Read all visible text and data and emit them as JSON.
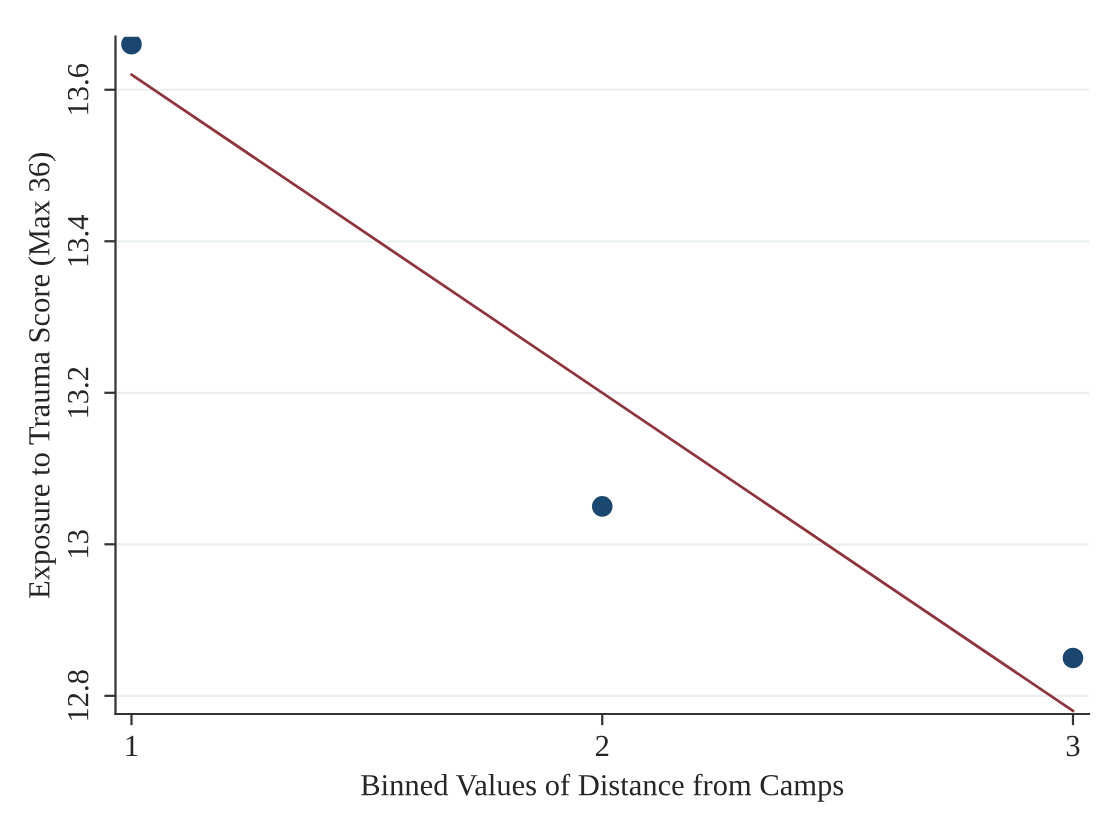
{
  "chart_data": {
    "type": "scatter",
    "xlabel": "Binned Values of Distance from Camps",
    "ylabel": "Exposure to Trauma Score (Max 36)",
    "series": [
      {
        "color": "#1a476f",
        "x": [
          1,
          2,
          3
        ],
        "values": [
          13.66,
          13.05,
          12.85
        ],
        "marker": "circle"
      },
      {
        "type": "line",
        "color": "#90353b",
        "x": [
          1,
          3
        ],
        "values": [
          13.62,
          12.78
        ],
        "line_style": "solid"
      }
    ],
    "xlim": [
      0.966,
      3.034
    ],
    "xticks": [
      1,
      2,
      3
    ],
    "ylim": [
      12.776,
      13.67
    ],
    "yticks": [
      12.8,
      13,
      13.2,
      13.4,
      13.6
    ],
    "grid": "y",
    "legend": false
  }
}
